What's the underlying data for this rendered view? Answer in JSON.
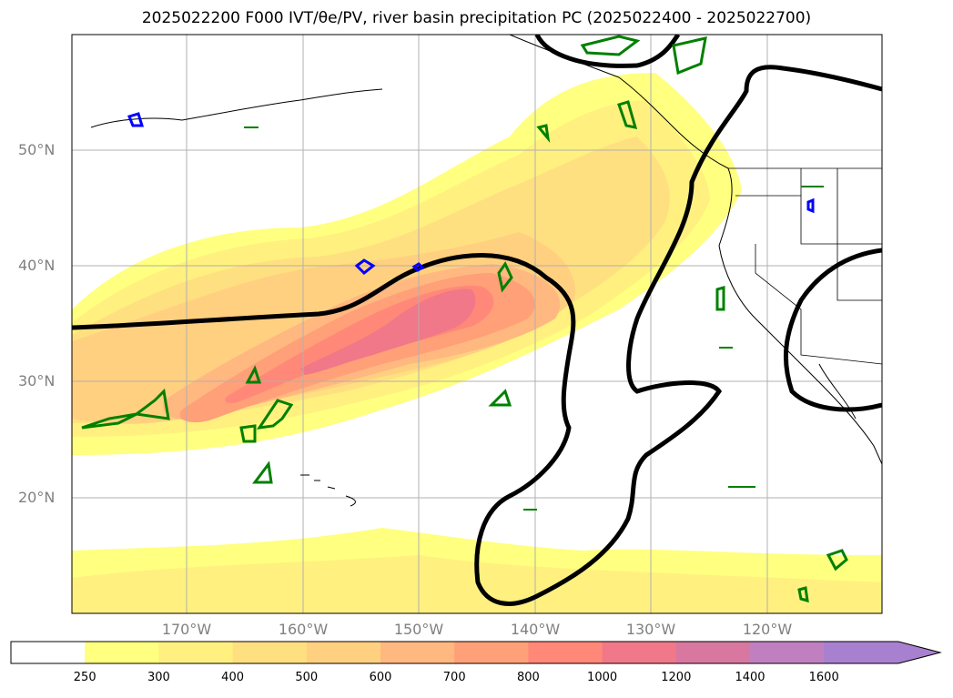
{
  "title": "2025022200 F000 IVT/θe/PV, river basin precipitation PC (2025022400 - 2025022700)",
  "latitude_labels": [
    "50°N",
    "40°N",
    "30°N",
    "20°N"
  ],
  "longitude_labels": [
    "170°W",
    "160°W",
    "150°W",
    "140°W",
    "130°W",
    "120°W"
  ],
  "colorbar": {
    "ticks": [
      "250",
      "300",
      "400",
      "500",
      "600",
      "700",
      "800",
      "1000",
      "1200",
      "1400",
      "1600"
    ],
    "colors": [
      "#ffffff",
      "#ffff80",
      "#fff080",
      "#ffe080",
      "#ffd080",
      "#ffb880",
      "#ffa078",
      "#ff8878",
      "#f07888",
      "#d878a0",
      "#c080c0",
      "#a880d0"
    ]
  },
  "colors": {
    "coastline": "#000000",
    "thick_contour": "#000000",
    "green_contour": "#008000",
    "blue_contour": "#0000ff",
    "gridline": "#b0b0b0",
    "label_text": "#808080"
  }
}
